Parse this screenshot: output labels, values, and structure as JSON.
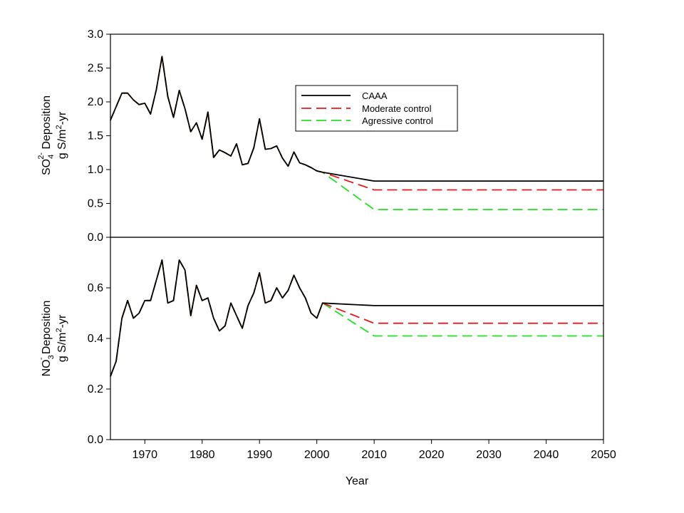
{
  "chart_data": {
    "type": "line",
    "xlabel": "Year",
    "x_ticks": [
      1970,
      1980,
      1990,
      2000,
      2010,
      2020,
      2030,
      2040,
      2050
    ],
    "xlim": [
      1964,
      2050
    ],
    "legend": {
      "placement": "upper-middle of top panel",
      "entries": [
        {
          "label": "CAAA",
          "color": "#000000",
          "style": "solid"
        },
        {
          "label": "Moderate control",
          "color": "#e41a1c",
          "style": "dashed"
        },
        {
          "label": "Agressive control",
          "color": "#22e022",
          "style": "dashed"
        }
      ]
    },
    "panels": [
      {
        "id": "so4",
        "ylabel_line1": "SO",
        "ylabel_sub": "4",
        "ylabel_sup": "2-",
        "ylabel_rest": " Deposition",
        "ylabel_line2_pre": "g S/m",
        "ylabel_line2_sup": "2",
        "ylabel_line2_post": "-yr",
        "ylim": [
          0,
          3.0
        ],
        "y_ticks": [
          "0.0",
          "0.5",
          "1.0",
          "1.5",
          "2.0",
          "2.5",
          "3.0"
        ],
        "historical": {
          "x": [
            1964,
            1965,
            1966,
            1967,
            1968,
            1969,
            1970,
            1971,
            1972,
            1973,
            1974,
            1975,
            1976,
            1977,
            1978,
            1979,
            1980,
            1981,
            1982,
            1983,
            1984,
            1985,
            1986,
            1987,
            1988,
            1989,
            1990,
            1991,
            1992,
            1993,
            1994,
            1995,
            1996,
            1997,
            1998,
            1999,
            2000,
            2001
          ],
          "y": [
            1.73,
            1.93,
            2.13,
            2.13,
            2.03,
            1.96,
            1.98,
            1.82,
            2.18,
            2.67,
            2.08,
            1.77,
            2.17,
            1.9,
            1.56,
            1.69,
            1.45,
            1.85,
            1.18,
            1.29,
            1.25,
            1.2,
            1.38,
            1.07,
            1.09,
            1.32,
            1.75,
            1.3,
            1.31,
            1.35,
            1.17,
            1.05,
            1.26,
            1.1,
            1.07,
            1.03,
            0.98,
            0.96
          ]
        },
        "series": [
          {
            "name": "CAAA",
            "x": [
              2001,
              2010,
              2050
            ],
            "y": [
              0.96,
              0.83,
              0.83
            ]
          },
          {
            "name": "Moderate control",
            "x": [
              2001,
              2010,
              2050
            ],
            "y": [
              0.96,
              0.7,
              0.7
            ]
          },
          {
            "name": "Agressive control",
            "x": [
              2001,
              2010,
              2050
            ],
            "y": [
              0.96,
              0.41,
              0.41
            ]
          }
        ]
      },
      {
        "id": "no3",
        "ylabel_line1": "NO",
        "ylabel_sub": "3",
        "ylabel_sup": "-",
        "ylabel_rest": " Deposition",
        "ylabel_line2_pre": "g S/m",
        "ylabel_line2_sup": "2",
        "ylabel_line2_post": "-yr",
        "ylim": [
          0,
          0.8
        ],
        "y_ticks": [
          "0.0",
          "0.2",
          "0.4",
          "0.6"
        ],
        "historical": {
          "x": [
            1964,
            1965,
            1966,
            1967,
            1968,
            1969,
            1970,
            1971,
            1972,
            1973,
            1974,
            1975,
            1976,
            1977,
            1978,
            1979,
            1980,
            1981,
            1982,
            1983,
            1984,
            1985,
            1986,
            1987,
            1988,
            1989,
            1990,
            1991,
            1992,
            1993,
            1994,
            1995,
            1996,
            1997,
            1998,
            1999,
            2000,
            2001
          ],
          "y": [
            0.25,
            0.31,
            0.48,
            0.55,
            0.48,
            0.5,
            0.55,
            0.55,
            0.63,
            0.71,
            0.54,
            0.55,
            0.71,
            0.67,
            0.49,
            0.61,
            0.55,
            0.56,
            0.48,
            0.43,
            0.45,
            0.54,
            0.49,
            0.44,
            0.53,
            0.58,
            0.66,
            0.54,
            0.55,
            0.6,
            0.56,
            0.59,
            0.65,
            0.6,
            0.56,
            0.5,
            0.48,
            0.54
          ]
        },
        "series": [
          {
            "name": "CAAA",
            "x": [
              2001,
              2010,
              2050
            ],
            "y": [
              0.54,
              0.53,
              0.53
            ]
          },
          {
            "name": "Moderate control",
            "x": [
              2001,
              2010,
              2050
            ],
            "y": [
              0.54,
              0.46,
              0.46
            ]
          },
          {
            "name": "Agressive control",
            "x": [
              2001,
              2010,
              2050
            ],
            "y": [
              0.54,
              0.41,
              0.41
            ]
          }
        ]
      }
    ]
  }
}
